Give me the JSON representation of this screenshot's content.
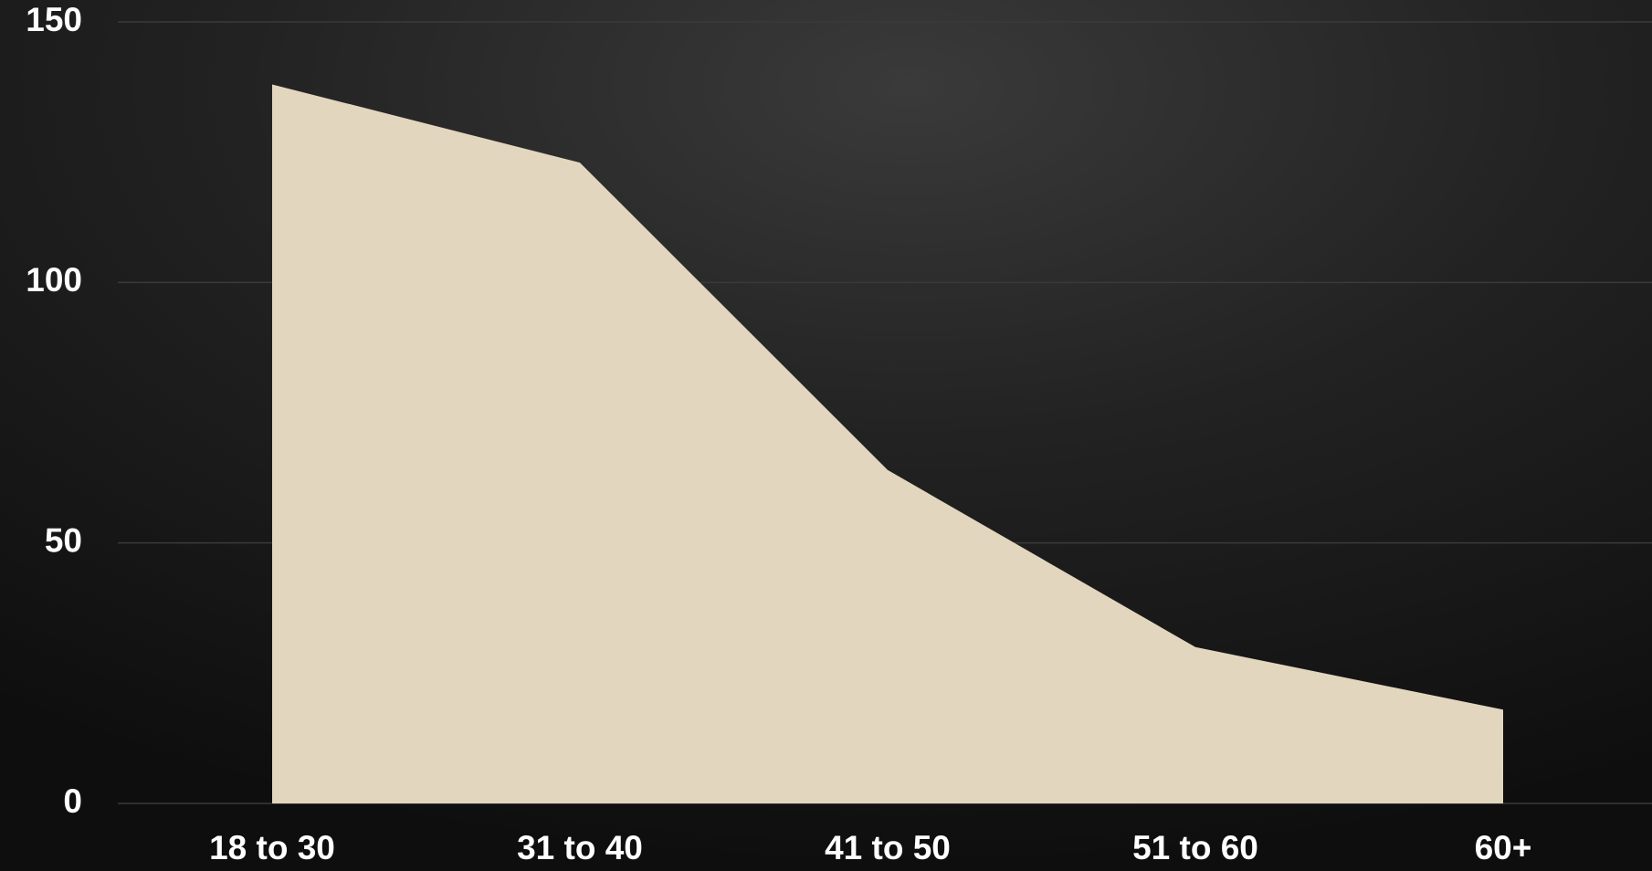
{
  "chart_data": {
    "type": "area",
    "categories": [
      "18 to 30",
      "31 to 40",
      "41 to 50",
      "51 to 60",
      "60+"
    ],
    "values": [
      138,
      123,
      64,
      30,
      18
    ],
    "color": "#e2d6bf",
    "ylim": [
      0,
      150
    ],
    "yticks": [
      0,
      50,
      100,
      150
    ],
    "grid": true
  }
}
